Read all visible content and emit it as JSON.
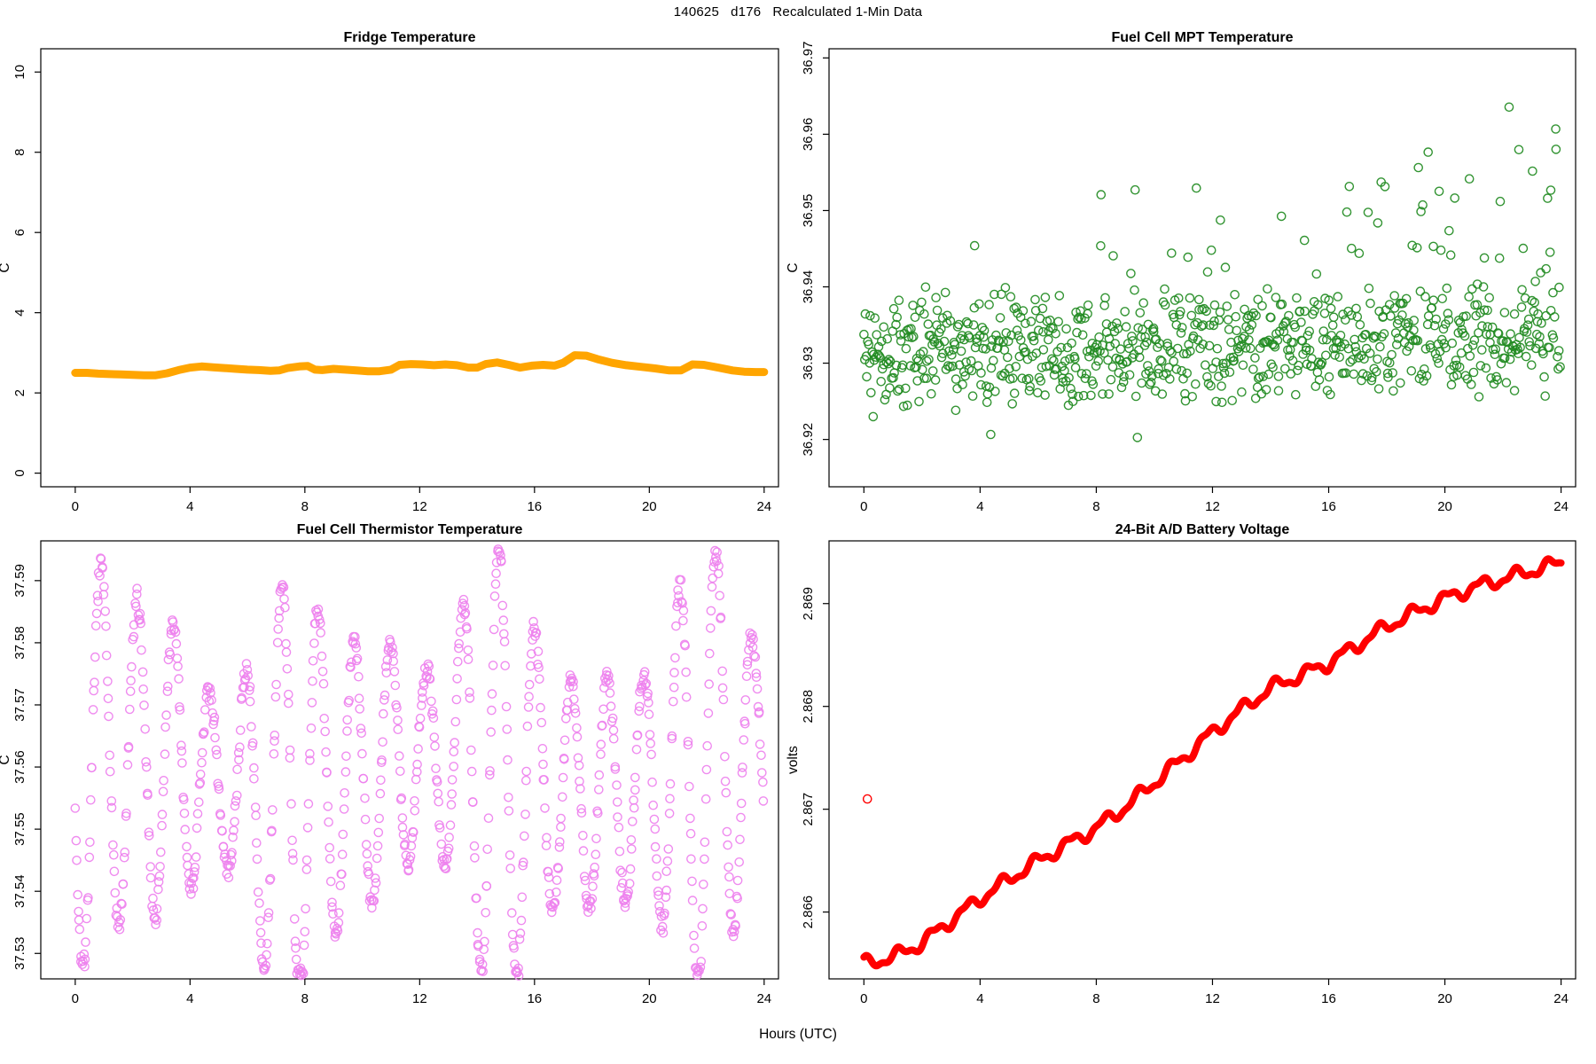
{
  "main_title": "140625   d176   Recalculated 1-Min Data",
  "xlabel": "Hours (UTC)",
  "chart_data": [
    {
      "name": "fridge-temperature",
      "type": "line",
      "title": "Fridge Temperature",
      "ylabel": "C",
      "xticks": [
        "0",
        "4",
        "8",
        "12",
        "16",
        "20",
        "24"
      ],
      "xtick_values": [
        0,
        4,
        8,
        12,
        16,
        20,
        24
      ],
      "xlim": [
        -1.2,
        24.5
      ],
      "yticks": [
        "0",
        "2",
        "4",
        "6",
        "8",
        "10"
      ],
      "ytick_values": [
        0,
        2,
        4,
        6,
        8,
        10
      ],
      "ylim": [
        -0.34,
        10.58
      ],
      "series_color": "#FFA500",
      "line_width": 9,
      "points_hours_c": [
        [
          0,
          2.5
        ],
        [
          0.4,
          2.5
        ],
        [
          0.8,
          2.48
        ],
        [
          1.2,
          2.47
        ],
        [
          1.6,
          2.46
        ],
        [
          2.0,
          2.45
        ],
        [
          2.4,
          2.44
        ],
        [
          2.8,
          2.44
        ],
        [
          3.2,
          2.49
        ],
        [
          3.6,
          2.57
        ],
        [
          4.0,
          2.63
        ],
        [
          4.4,
          2.66
        ],
        [
          4.8,
          2.64
        ],
        [
          5.2,
          2.62
        ],
        [
          5.6,
          2.6
        ],
        [
          6.0,
          2.58
        ],
        [
          6.4,
          2.57
        ],
        [
          6.8,
          2.55
        ],
        [
          7.1,
          2.56
        ],
        [
          7.4,
          2.62
        ],
        [
          7.8,
          2.66
        ],
        [
          8.1,
          2.67
        ],
        [
          8.35,
          2.58
        ],
        [
          8.6,
          2.57
        ],
        [
          9.0,
          2.6
        ],
        [
          9.4,
          2.58
        ],
        [
          9.8,
          2.56
        ],
        [
          10.2,
          2.54
        ],
        [
          10.6,
          2.54
        ],
        [
          11.0,
          2.58
        ],
        [
          11.3,
          2.7
        ],
        [
          11.7,
          2.72
        ],
        [
          12.1,
          2.71
        ],
        [
          12.5,
          2.69
        ],
        [
          12.9,
          2.71
        ],
        [
          13.3,
          2.69
        ],
        [
          13.7,
          2.63
        ],
        [
          14.0,
          2.63
        ],
        [
          14.3,
          2.72
        ],
        [
          14.7,
          2.76
        ],
        [
          15.1,
          2.7
        ],
        [
          15.5,
          2.63
        ],
        [
          15.9,
          2.68
        ],
        [
          16.3,
          2.7
        ],
        [
          16.7,
          2.68
        ],
        [
          17.0,
          2.75
        ],
        [
          17.4,
          2.94
        ],
        [
          17.8,
          2.93
        ],
        [
          18.2,
          2.84
        ],
        [
          18.7,
          2.75
        ],
        [
          19.2,
          2.69
        ],
        [
          19.7,
          2.65
        ],
        [
          20.2,
          2.61
        ],
        [
          20.7,
          2.56
        ],
        [
          21.1,
          2.56
        ],
        [
          21.5,
          2.71
        ],
        [
          21.9,
          2.7
        ],
        [
          22.4,
          2.63
        ],
        [
          22.9,
          2.56
        ],
        [
          23.3,
          2.53
        ],
        [
          23.7,
          2.52
        ],
        [
          24,
          2.52
        ]
      ]
    },
    {
      "name": "fuel-cell-mpt-temperature",
      "type": "scatter",
      "title": "Fuel Cell MPT Temperature",
      "ylabel": "C",
      "xticks": [
        "0",
        "4",
        "8",
        "12",
        "16",
        "20",
        "24"
      ],
      "xtick_values": [
        0,
        4,
        8,
        12,
        16,
        20,
        24
      ],
      "xlim": [
        -1.2,
        24.5
      ],
      "yticks": [
        "36.92",
        "36.93",
        "36.94",
        "36.95",
        "36.96",
        "36.97"
      ],
      "ytick_values": [
        36.92,
        36.93,
        36.94,
        36.95,
        36.96,
        36.97
      ],
      "ylim": [
        36.9138,
        36.9712
      ],
      "series_color": "#228B22",
      "marker_radius": 4.6,
      "marker_stroke": 1.4,
      "generator": {
        "kind": "mpt",
        "seed": 42,
        "n": 860,
        "base": 36.9313,
        "trend": 0.0017,
        "spread": 0.0082,
        "low_p": 0.03,
        "low_mag": 0.006,
        "spike_p0": 0.05,
        "spike_p1": 0.14,
        "spike_t0": 5,
        "spike_t1": 20,
        "spike_base": 0.01,
        "spike_trend": 0.017,
        "clip_lo": 36.9158,
        "clip_hi": 36.9682
      }
    },
    {
      "name": "fuel-cell-thermistor-temperature",
      "type": "scatter",
      "title": "Fuel Cell Thermistor Temperature",
      "ylabel": "C",
      "xticks": [
        "0",
        "4",
        "8",
        "12",
        "16",
        "20",
        "24"
      ],
      "xtick_values": [
        0,
        4,
        8,
        12,
        16,
        20,
        24
      ],
      "xlim": [
        -1.2,
        24.5
      ],
      "yticks": [
        "37.53",
        "37.54",
        "37.55",
        "37.56",
        "37.57",
        "37.58",
        "37.59"
      ],
      "ytick_values": [
        37.53,
        37.54,
        37.55,
        37.56,
        37.57,
        37.58,
        37.59
      ],
      "ylim": [
        37.5259,
        37.5964
      ],
      "series_color": "#EE82EE",
      "marker_radius": 4.6,
      "marker_stroke": 1.4,
      "generator": {
        "kind": "thermistor",
        "seed": 7,
        "n": 900,
        "mid": 37.5585,
        "mid_amp": 0.003,
        "mid_period": 11,
        "mid_phase": 0.7,
        "osc_period": 1.26,
        "osc_phase": -2.917,
        "amp": 0.0235,
        "amp1": 0.0085,
        "amp1_period": 6.9,
        "amp1_phase": 0.6,
        "amp2": 0.004,
        "amp2_period": 3.7,
        "amp2_phase": 1.9,
        "noise": 0.0022,
        "clip_lo": 37.5262,
        "clip_hi": 37.5952
      }
    },
    {
      "name": "battery-voltage",
      "type": "line",
      "title": "24-Bit A/D Battery Voltage",
      "ylabel": "volts",
      "xticks": [
        "0",
        "4",
        "8",
        "12",
        "16",
        "20",
        "24"
      ],
      "xtick_values": [
        0,
        4,
        8,
        12,
        16,
        20,
        24
      ],
      "xlim": [
        -1.2,
        24.5
      ],
      "yticks": [
        "2.866",
        "2.867",
        "2.868",
        "2.869"
      ],
      "ytick_values": [
        2.866,
        2.867,
        2.868,
        2.869
      ],
      "ylim": [
        2.86535,
        2.86961
      ],
      "series_color": "#FF0000",
      "line_width": 8,
      "outlier_point": [
        0.12,
        2.8671
      ],
      "wiggle": {
        "n": 1440,
        "w1": 5.5e-05,
        "p1": 1.18,
        "ph1": 1.5,
        "w2": 2.2e-05,
        "p2": 0.52,
        "ph2": 0.3
      },
      "points_hours_volts": [
        [
          0,
          2.8655
        ],
        [
          1,
          2.86556
        ],
        [
          2,
          2.8657
        ],
        [
          3,
          2.86592
        ],
        [
          4,
          2.86613
        ],
        [
          5,
          2.86632
        ],
        [
          6,
          2.8665
        ],
        [
          7,
          2.86666
        ],
        [
          8,
          2.86682
        ],
        [
          9,
          2.86702
        ],
        [
          10,
          2.86726
        ],
        [
          11,
          2.8675
        ],
        [
          12,
          2.86775
        ],
        [
          13,
          2.86797
        ],
        [
          14,
          2.86818
        ],
        [
          15,
          2.8683
        ],
        [
          16,
          2.86842
        ],
        [
          17,
          2.8686
        ],
        [
          18,
          2.86878
        ],
        [
          19,
          2.86892
        ],
        [
          20,
          2.86905
        ],
        [
          21,
          2.86916
        ],
        [
          22,
          2.86924
        ],
        [
          23,
          2.86932
        ],
        [
          24,
          2.8694
        ]
      ]
    }
  ]
}
